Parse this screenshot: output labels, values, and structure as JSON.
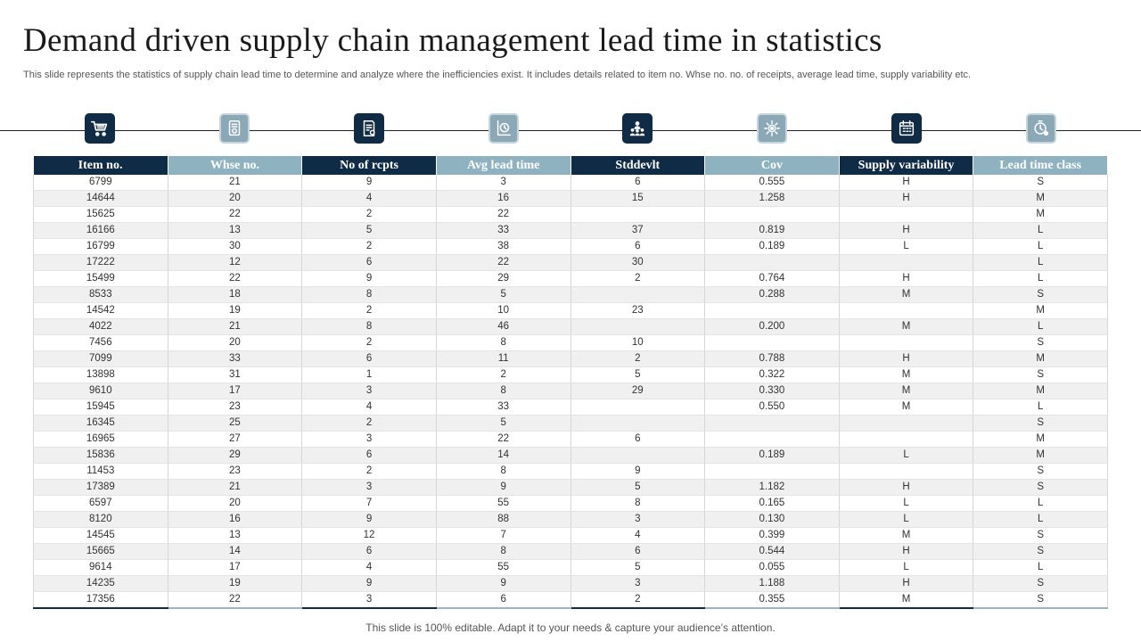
{
  "slide": {
    "title": "Demand driven supply chain management lead time in statistics",
    "subtitle": "This slide represents the statistics of supply chain lead time to determine and analyze where the inefficiencies exist. It includes details related to item no. Whse no. no. of receipts, average lead time, supply variability etc.",
    "footer": "This slide is 100% editable. Adapt it to your needs & capture your audience’s attention."
  },
  "colors": {
    "dark": "#102b45",
    "light": "#8fb2c0",
    "row_alt": "#f0f0f0"
  },
  "icons": [
    {
      "name": "shopping-cart-icon",
      "style": "dark"
    },
    {
      "name": "warehouse-document-icon",
      "style": "light"
    },
    {
      "name": "receipt-icon",
      "style": "dark"
    },
    {
      "name": "clock-chart-icon",
      "style": "light"
    },
    {
      "name": "team-hierarchy-icon",
      "style": "dark"
    },
    {
      "name": "gear-network-icon",
      "style": "light"
    },
    {
      "name": "calendar-grid-icon",
      "style": "dark"
    },
    {
      "name": "stopwatch-user-icon",
      "style": "light"
    }
  ],
  "table": {
    "headers": [
      "Item no.",
      "Whse no.",
      "No of rcpts",
      "Avg lead time",
      "Stddevlt",
      "Cov",
      "Supply variability",
      "Lead time class"
    ],
    "header_styles": [
      "dark",
      "light",
      "dark",
      "light",
      "dark",
      "light",
      "dark",
      "light"
    ],
    "rows": [
      [
        "6799",
        "21",
        "9",
        "3",
        "6",
        "0.555",
        "H",
        "S"
      ],
      [
        "14644",
        "20",
        "4",
        "16",
        "15",
        "1.258",
        "H",
        "M"
      ],
      [
        "15625",
        "22",
        "2",
        "22",
        "",
        "",
        "",
        "M"
      ],
      [
        "16166",
        "13",
        "5",
        "33",
        "37",
        "0.819",
        "H",
        "L"
      ],
      [
        "16799",
        "30",
        "2",
        "38",
        "6",
        "0.189",
        "L",
        "L"
      ],
      [
        "17222",
        "12",
        "6",
        "22",
        "30",
        "",
        "",
        "L"
      ],
      [
        "15499",
        "22",
        "9",
        "29",
        "2",
        "0.764",
        "H",
        "L"
      ],
      [
        "8533",
        "18",
        "8",
        "5",
        "",
        "0.288",
        "M",
        "S"
      ],
      [
        "14542",
        "19",
        "2",
        "10",
        "23",
        "",
        "",
        "M"
      ],
      [
        "4022",
        "21",
        "8",
        "46",
        "",
        "0.200",
        "M",
        "L"
      ],
      [
        "7456",
        "20",
        "2",
        "8",
        "10",
        "",
        "",
        "S"
      ],
      [
        "7099",
        "33",
        "6",
        "11",
        "2",
        "0.788",
        "H",
        "M"
      ],
      [
        "13898",
        "31",
        "1",
        "2",
        "5",
        "0.322",
        "M",
        "S"
      ],
      [
        "9610",
        "17",
        "3",
        "8",
        "29",
        "0.330",
        "M",
        "M"
      ],
      [
        "15945",
        "23",
        "4",
        "33",
        "",
        "0.550",
        "M",
        "L"
      ],
      [
        "16345",
        "25",
        "2",
        "5",
        "",
        "",
        "",
        "S"
      ],
      [
        "16965",
        "27",
        "3",
        "22",
        "6",
        "",
        "",
        "M"
      ],
      [
        "15836",
        "29",
        "6",
        "14",
        "",
        "0.189",
        "L",
        "M"
      ],
      [
        "11453",
        "23",
        "2",
        "8",
        "9",
        "",
        "",
        "S"
      ],
      [
        "17389",
        "21",
        "3",
        "9",
        "5",
        "1.182",
        "H",
        "S"
      ],
      [
        "6597",
        "20",
        "7",
        "55",
        "8",
        "0.165",
        "L",
        "L"
      ],
      [
        "8120",
        "16",
        "9",
        "88",
        "3",
        "0.130",
        "L",
        "L"
      ],
      [
        "14545",
        "13",
        "12",
        "7",
        "4",
        "0.399",
        "M",
        "S"
      ],
      [
        "15665",
        "14",
        "6",
        "8",
        "6",
        "0.544",
        "H",
        "S"
      ],
      [
        "9614",
        "17",
        "4",
        "55",
        "5",
        "0.055",
        "L",
        "L"
      ],
      [
        "14235",
        "19",
        "9",
        "9",
        "3",
        "1.188",
        "H",
        "S"
      ],
      [
        "17356",
        "22",
        "3",
        "6",
        "2",
        "0.355",
        "M",
        "S"
      ]
    ]
  }
}
